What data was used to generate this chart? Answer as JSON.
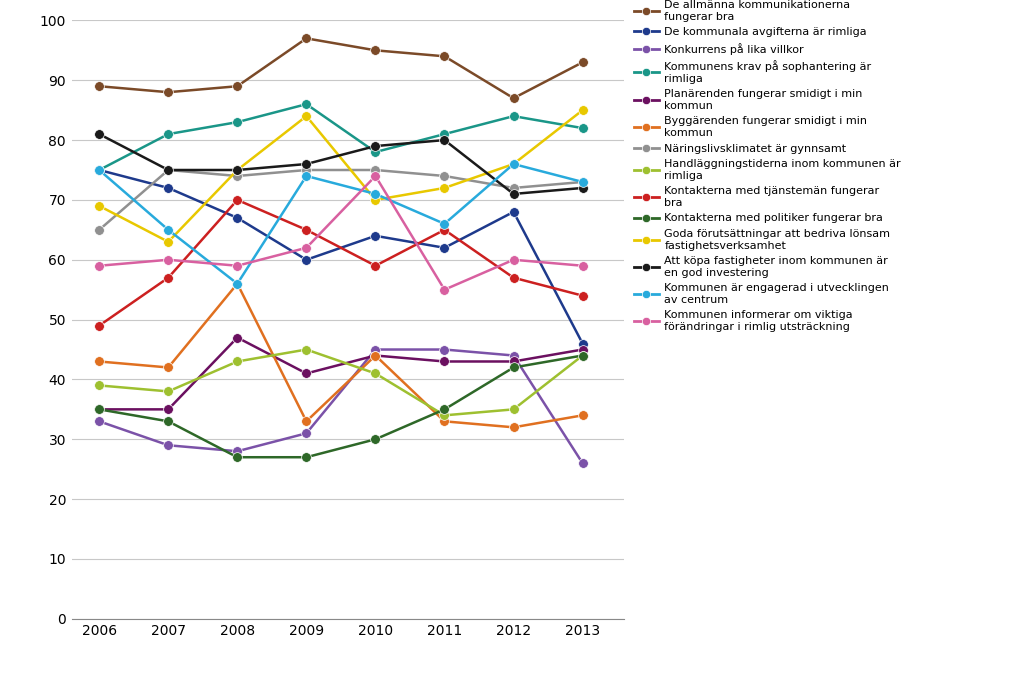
{
  "years": [
    2006,
    2007,
    2008,
    2009,
    2010,
    2011,
    2012,
    2013
  ],
  "series": [
    {
      "label": "De allmänna kommunikationerna\nfungerar bra",
      "color": "#7B4A28",
      "values": [
        89,
        88,
        89,
        97,
        95,
        94,
        87,
        93
      ]
    },
    {
      "label": "De kommunala avgifterna är rimliga",
      "color": "#1E3A8C",
      "values": [
        75,
        72,
        67,
        60,
        64,
        62,
        68,
        46
      ]
    },
    {
      "label": "Konkurrens på lika villkor",
      "color": "#7B52A8",
      "values": [
        33,
        29,
        28,
        31,
        45,
        45,
        44,
        26
      ]
    },
    {
      "label": "Kommunens krav på sophantering är\nrimliga",
      "color": "#1A9688",
      "values": [
        75,
        81,
        83,
        86,
        78,
        81,
        84,
        82
      ]
    },
    {
      "label": "Planärenden fungerar smidigt i min\nkommun",
      "color": "#6B1060",
      "values": [
        35,
        35,
        47,
        41,
        44,
        43,
        43,
        45
      ]
    },
    {
      "label": "Byggärenden fungerar smidigt i min\nkommun",
      "color": "#E07020",
      "values": [
        43,
        42,
        56,
        33,
        44,
        33,
        32,
        34
      ]
    },
    {
      "label": "Näringslivsklimatet är gynnsamt",
      "color": "#909090",
      "values": [
        65,
        75,
        74,
        75,
        75,
        74,
        72,
        73
      ]
    },
    {
      "label": "Handläggningstiderna inom kommunen är\nrimliga",
      "color": "#9EC030",
      "values": [
        39,
        38,
        43,
        45,
        41,
        34,
        35,
        44
      ]
    },
    {
      "label": "Kontakterna med tjänstemän fungerar\nbra",
      "color": "#CC2020",
      "values": [
        49,
        57,
        70,
        65,
        59,
        65,
        57,
        54
      ]
    },
    {
      "label": "Kontakterna med politiker fungerar bra",
      "color": "#2E6828",
      "values": [
        35,
        33,
        27,
        27,
        30,
        35,
        42,
        44
      ]
    },
    {
      "label": "Goda förutsättningar att bedriva lönsam\nfastighetsverksamhet",
      "color": "#E8C800",
      "values": [
        69,
        63,
        75,
        84,
        70,
        72,
        76,
        85
      ]
    },
    {
      "label": "Att köpa fastigheter inom kommunen är\nen god investering",
      "color": "#1A1A1A",
      "values": [
        81,
        75,
        75,
        76,
        79,
        80,
        71,
        72
      ]
    },
    {
      "label": "Kommunen är engagerad i utvecklingen\nav centrum",
      "color": "#28AADC",
      "values": [
        75,
        65,
        56,
        74,
        71,
        66,
        76,
        73
      ]
    },
    {
      "label": "Kommunen informerar om viktiga\nförändringar i rimlig utsträckning",
      "color": "#D860A0",
      "values": [
        59,
        60,
        59,
        62,
        74,
        55,
        60,
        59
      ]
    }
  ],
  "xlim": [
    2005.6,
    2013.6
  ],
  "ylim": [
    0,
    100
  ],
  "yticks": [
    0,
    10,
    20,
    30,
    40,
    50,
    60,
    70,
    80,
    90,
    100
  ],
  "xticks": [
    2006,
    2007,
    2008,
    2009,
    2010,
    2011,
    2012,
    2013
  ],
  "background_color": "#FFFFFF",
  "grid_color": "#C8C8C8",
  "marker": "o",
  "markersize": 7,
  "linewidth": 1.8,
  "legend_fontsize": 8.0,
  "tick_fontsize": 10
}
